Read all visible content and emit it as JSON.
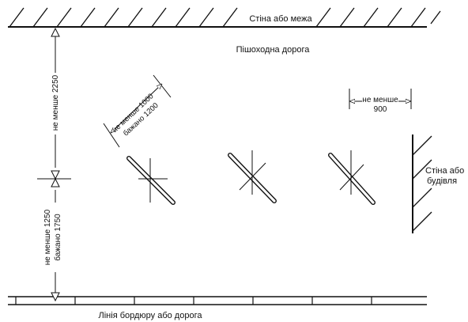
{
  "labels": {
    "top_wall": "Стіна або межа",
    "walkway": "Пішоходна дорога",
    "right_wall_line1": "Стіна або",
    "right_wall_line2": "будівля",
    "curb_line": "Лінія бордюру або дорога",
    "dim_left_top": "не менше 2250",
    "dim_left_bottom_line1": "не менше 1250",
    "dim_left_bottom_line2": "бажано 1750",
    "dim_diag_line1": "не менше 1000",
    "dim_diag_line2": "бажано 1200",
    "dim_right_line1": "не менше",
    "dim_right_line2": "900"
  }
}
